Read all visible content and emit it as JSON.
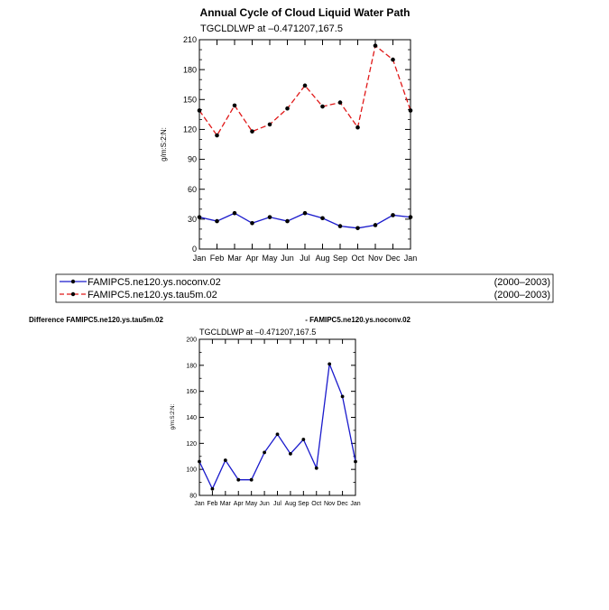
{
  "page": {
    "title": "Annual Cycle of Cloud Liquid Water Path"
  },
  "chart_data": [
    {
      "type": "line",
      "title": "Annual Cycle of Cloud Liquid Water Path",
      "subtitle": "TGCLDLWP  at  –0.471207,167.5",
      "ylabel": "g/m:S:2:N:",
      "xlabel": "",
      "ylim": [
        0,
        210
      ],
      "yticks": [
        "0",
        "30",
        "60",
        "90",
        "120",
        "150",
        "180",
        "210"
      ],
      "categories": [
        "Jan",
        "Feb",
        "Mar",
        "Apr",
        "May",
        "Jun",
        "Jul",
        "Aug",
        "Sep",
        "Oct",
        "Nov",
        "Dec",
        "Jan"
      ],
      "series": [
        {
          "name": "FAMIPC5.ne120.ys.noconv.02",
          "period": "(2000–2003)",
          "color": "#1a1acc",
          "dash": "solid",
          "values": [
            32,
            28,
            36,
            26,
            32,
            28,
            36,
            31,
            23,
            21,
            24,
            34,
            32
          ]
        },
        {
          "name": "FAMIPC5.ne120.ys.tau5m.02",
          "period": "(2000–2003)",
          "color": "#e01818",
          "dash": "dashed",
          "values": [
            139,
            114,
            144,
            118,
            125,
            141,
            164,
            143,
            147,
            122,
            204,
            190,
            139
          ]
        }
      ],
      "legend": "bottom",
      "grid": false
    },
    {
      "type": "line",
      "title_left": "Difference FAMIPC5.ne120.ys.tau5m.02",
      "title_right": "- FAMIPC5.ne120.ys.noconv.02",
      "subtitle": "TGCLDLWP  at  –0.471207,167.5",
      "ylabel": "g/m:S:2:N:",
      "xlabel": "",
      "ylim": [
        80,
        200
      ],
      "yticks": [
        "80",
        "100",
        "120",
        "140",
        "160",
        "180",
        "200"
      ],
      "categories": [
        "Jan",
        "Feb",
        "Mar",
        "Apr",
        "May",
        "Jun",
        "Jul",
        "Aug",
        "Sep",
        "Oct",
        "Nov",
        "Dec",
        "Jan"
      ],
      "series": [
        {
          "color": "#1a1acc",
          "dash": "solid",
          "values": [
            106,
            85,
            107,
            92,
            92,
            113,
            127,
            112,
            123,
            101,
            181,
            156,
            106
          ]
        }
      ],
      "grid": false
    }
  ]
}
